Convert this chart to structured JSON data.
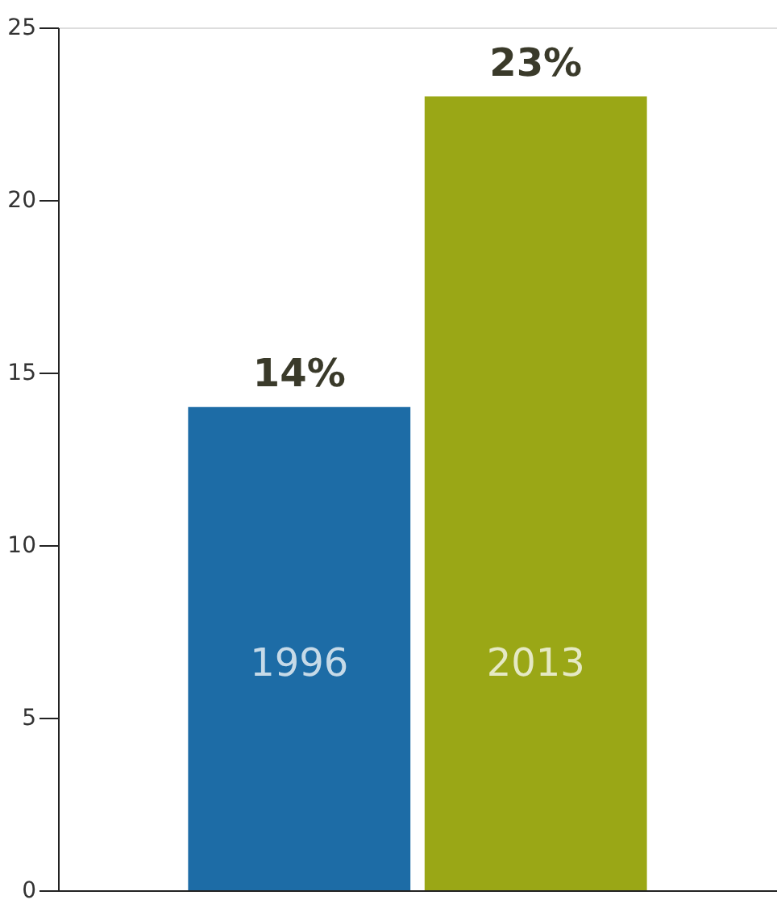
{
  "chart_data": {
    "type": "bar",
    "categories": [
      "1996",
      "2013"
    ],
    "values": [
      14,
      23
    ],
    "colors": [
      "#1d6ca6",
      "#9aa716"
    ],
    "value_labels": [
      "14%",
      "23%"
    ],
    "ylim": [
      0,
      25
    ],
    "yticks": [
      0,
      5,
      10,
      15,
      20,
      25
    ],
    "grid": false
  }
}
